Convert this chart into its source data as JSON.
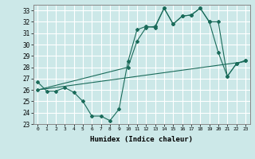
{
  "xlabel": "Humidex (Indice chaleur)",
  "ylabel": "",
  "bg_color": "#cce8e8",
  "grid_color": "#ffffff",
  "line_color": "#1a6b5a",
  "xlim": [
    -0.5,
    23.5
  ],
  "ylim": [
    23,
    33.5
  ],
  "yticks": [
    23,
    24,
    25,
    26,
    27,
    28,
    29,
    30,
    31,
    32,
    33
  ],
  "xticks": [
    0,
    1,
    2,
    3,
    4,
    5,
    6,
    7,
    8,
    9,
    10,
    11,
    12,
    13,
    14,
    15,
    16,
    17,
    18,
    19,
    20,
    21,
    22,
    23
  ],
  "series1": {
    "x": [
      0,
      1,
      2,
      3,
      4,
      5,
      6,
      7,
      8,
      9,
      10,
      11,
      12,
      13,
      14,
      15,
      16,
      17,
      18,
      19,
      20,
      21,
      22,
      23
    ],
    "y": [
      26.7,
      25.9,
      25.9,
      26.2,
      25.8,
      25.0,
      23.7,
      23.7,
      23.3,
      24.3,
      28.5,
      31.3,
      31.6,
      31.5,
      33.2,
      31.8,
      32.5,
      32.6,
      33.2,
      32.0,
      29.3,
      27.2,
      28.3,
      28.6
    ]
  },
  "series2": {
    "x": [
      0,
      10,
      11,
      12,
      13,
      14,
      15,
      16,
      17,
      18,
      19,
      20,
      21,
      22,
      23
    ],
    "y": [
      26.0,
      28.0,
      30.3,
      31.5,
      31.6,
      33.2,
      31.8,
      32.5,
      32.6,
      33.2,
      32.0,
      32.0,
      27.2,
      28.3,
      28.6
    ]
  },
  "series3": {
    "x": [
      0,
      23
    ],
    "y": [
      26.0,
      28.5
    ]
  }
}
